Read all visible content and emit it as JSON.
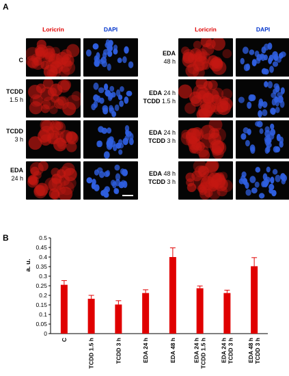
{
  "panel_a": {
    "letter": "A",
    "col_loricrin": "Loricrin",
    "col_dapi": "DAPI",
    "colors": {
      "loricrin_text": "#e00000",
      "dapi_text": "#0033cc",
      "loricrin_cell": "#c41812",
      "dapi_nucleus": "#2f5fe0"
    },
    "left_rows": [
      {
        "id": "c",
        "line1_bold": "C",
        "line1_rest": "",
        "line2_bold": "",
        "line2_rest": ""
      },
      {
        "id": "tcdd15",
        "line1_bold": "TCDD",
        "line1_rest": "",
        "line2_bold": "",
        "line2_rest": "1.5 h"
      },
      {
        "id": "tcdd3",
        "line1_bold": "TCDD",
        "line1_rest": "",
        "line2_bold": "",
        "line2_rest": "3 h"
      },
      {
        "id": "eda24",
        "line1_bold": "EDA",
        "line1_rest": "",
        "line2_bold": "",
        "line2_rest": "24 h"
      }
    ],
    "right_rows": [
      {
        "id": "eda48",
        "line1_bold": "EDA",
        "line1_rest": "",
        "line2_bold": "",
        "line2_rest": "48 h"
      },
      {
        "id": "eda24tcdd15",
        "line1_bold": "EDA",
        "line1_rest": " 24 h",
        "line2_bold": "TCDD",
        "line2_rest": " 1.5 h"
      },
      {
        "id": "eda24tcdd3",
        "line1_bold": "EDA",
        "line1_rest": " 24 h",
        "line2_bold": "TCDD",
        "line2_rest": " 3 h"
      },
      {
        "id": "eda48tcdd3",
        "line1_bold": "EDA",
        "line1_rest": " 48 h",
        "line2_bold": "TCDD",
        "line2_rest": " 3 h"
      }
    ]
  },
  "panel_b": {
    "letter": "B"
  },
  "chart_data": {
    "type": "bar",
    "ylabel": "a. u.",
    "ylim": [
      0,
      0.5
    ],
    "yticks": [
      0,
      0.05,
      0.1,
      0.15,
      0.2,
      0.25,
      0.3,
      0.35,
      0.4,
      0.45,
      0.5
    ],
    "ytick_labels": [
      "0",
      "0.05",
      "0.1",
      "0.15",
      "0.2",
      "0.25",
      "0.3",
      "0.35",
      "0.4",
      "0.45",
      "0.5"
    ],
    "categories": [
      {
        "lines": [
          "C"
        ]
      },
      {
        "lines": [
          "TCDD 1.5 h"
        ]
      },
      {
        "lines": [
          "TCDD 3 h"
        ]
      },
      {
        "lines": [
          "EDA 24 h"
        ]
      },
      {
        "lines": [
          "EDA 48 h"
        ]
      },
      {
        "lines": [
          "EDA 24 h",
          "TCDD 1.5 h"
        ]
      },
      {
        "lines": [
          "EDA 24 h",
          "TCDD 3 h"
        ]
      },
      {
        "lines": [
          "EDA 48 h",
          "TCDD 3 h"
        ]
      }
    ],
    "values": [
      0.255,
      0.182,
      0.152,
      0.212,
      0.4,
      0.237,
      0.212,
      0.352
    ],
    "errors": [
      0.022,
      0.018,
      0.02,
      0.017,
      0.048,
      0.012,
      0.015,
      0.045
    ],
    "bar_color": "#e00000",
    "grid": false
  }
}
